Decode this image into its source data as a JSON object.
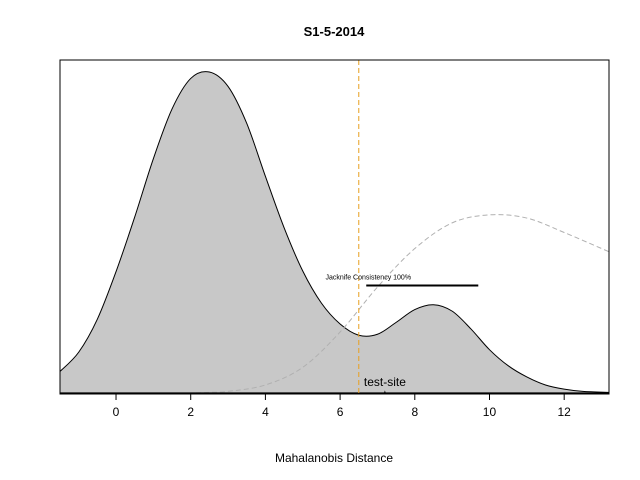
{
  "chart_data": {
    "type": "area",
    "title": "S1-5-2014",
    "xlabel": "Mahalanobis Distance",
    "ylabel": "",
    "xlim": [
      -1.5,
      13.2
    ],
    "ylim": [
      0,
      1.0
    ],
    "xticks": [
      "0",
      "2",
      "4",
      "6",
      "8",
      "10",
      "12"
    ],
    "xtick_values": [
      0,
      2,
      4,
      6,
      8,
      10,
      12
    ],
    "y_axis_shown": false,
    "grid": false,
    "colors": {
      "fill": "#c8c8c8",
      "outline": "#000000",
      "threshold": "#e8a020",
      "reference": "#b0b0b0"
    },
    "series": [
      {
        "style": "filled density",
        "x": [
          -1.5,
          -1.0,
          -0.5,
          0.0,
          0.5,
          1.0,
          1.5,
          2.0,
          2.5,
          3.0,
          3.5,
          4.0,
          4.5,
          5.0,
          5.5,
          6.0,
          6.5,
          7.0,
          7.5,
          8.0,
          8.5,
          9.0,
          9.5,
          10.0,
          10.5,
          11.0,
          11.5,
          12.0,
          12.5,
          13.2
        ],
        "y": [
          0.067,
          0.127,
          0.23,
          0.378,
          0.548,
          0.73,
          0.885,
          0.98,
          1.0,
          0.955,
          0.84,
          0.675,
          0.515,
          0.38,
          0.28,
          0.215,
          0.18,
          0.183,
          0.22,
          0.26,
          0.275,
          0.255,
          0.2,
          0.135,
          0.085,
          0.05,
          0.025,
          0.012,
          0.005,
          0.002
        ]
      },
      {
        "style": "dashed reference density",
        "x": [
          -1.5,
          0.0,
          1.0,
          2.0,
          2.5,
          3.0,
          4.0,
          5.0,
          6.0,
          7.0,
          8.0,
          9.0,
          10.0,
          11.0,
          12.0,
          13.2
        ],
        "y": [
          0.0,
          0.0,
          0.0,
          0.0,
          0.002,
          0.005,
          0.025,
          0.08,
          0.19,
          0.33,
          0.45,
          0.53,
          0.555,
          0.545,
          0.5,
          0.44
        ]
      }
    ],
    "threshold_x": 6.5,
    "jackknife": {
      "label": "Jacknife Consistency 100%",
      "x_start": 6.7,
      "x_end": 9.7,
      "y": 0.335
    },
    "test_site": {
      "label": "test-site",
      "x": 7.2,
      "y": 0.0
    }
  }
}
